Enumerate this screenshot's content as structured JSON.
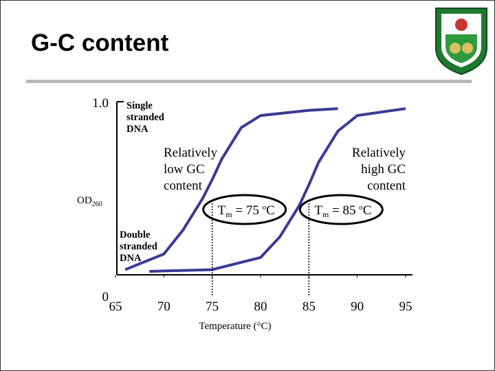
{
  "slide_title": "G-C content",
  "chart_data": {
    "type": "line",
    "x_label": "Temperature (°C)",
    "y_label": {
      "text": "OD",
      "subscript": "260"
    },
    "xlim": [
      65,
      95
    ],
    "xticks": [
      65,
      70,
      75,
      80,
      85,
      90,
      95
    ],
    "ylim": [
      0,
      1
    ],
    "yticks": [
      0,
      {
        "value": 1,
        "label": "1.0"
      }
    ],
    "series": [
      {
        "color": "#3a3a96",
        "x": [
          66,
          70,
          72,
          74,
          75,
          76,
          78,
          80,
          85,
          88
        ],
        "values": [
          0.03,
          0.12,
          0.26,
          0.44,
          0.55,
          0.67,
          0.85,
          0.92,
          0.95,
          0.96
        ]
      },
      {
        "color": "#3a3a96",
        "x": [
          68.5,
          75,
          80,
          82,
          84,
          85,
          86,
          88,
          90,
          95
        ],
        "values": [
          0.02,
          0.03,
          0.1,
          0.22,
          0.4,
          0.52,
          0.65,
          0.83,
          0.92,
          0.96
        ]
      }
    ],
    "annotations": [
      {
        "lines": [
          "Single",
          "stranded",
          "DNA"
        ],
        "bold": true
      },
      {
        "lines": [
          "Double",
          "stranded",
          "DNA"
        ],
        "bold": true
      },
      {
        "lines": [
          "Relatively",
          "low GC",
          "content"
        ],
        "bold": false
      },
      {
        "lines": [
          "Relatively",
          "high GC",
          "content"
        ],
        "bold": false
      }
    ],
    "melting_points": [
      {
        "x": 75,
        "symbol": "T",
        "subscript": "m",
        "text": " = 75 ",
        "superscript": "o",
        "unit": "C"
      },
      {
        "x": 85,
        "symbol": "T",
        "subscript": "m",
        "text": " = 85 ",
        "superscript": "o",
        "unit": "C"
      }
    ]
  }
}
